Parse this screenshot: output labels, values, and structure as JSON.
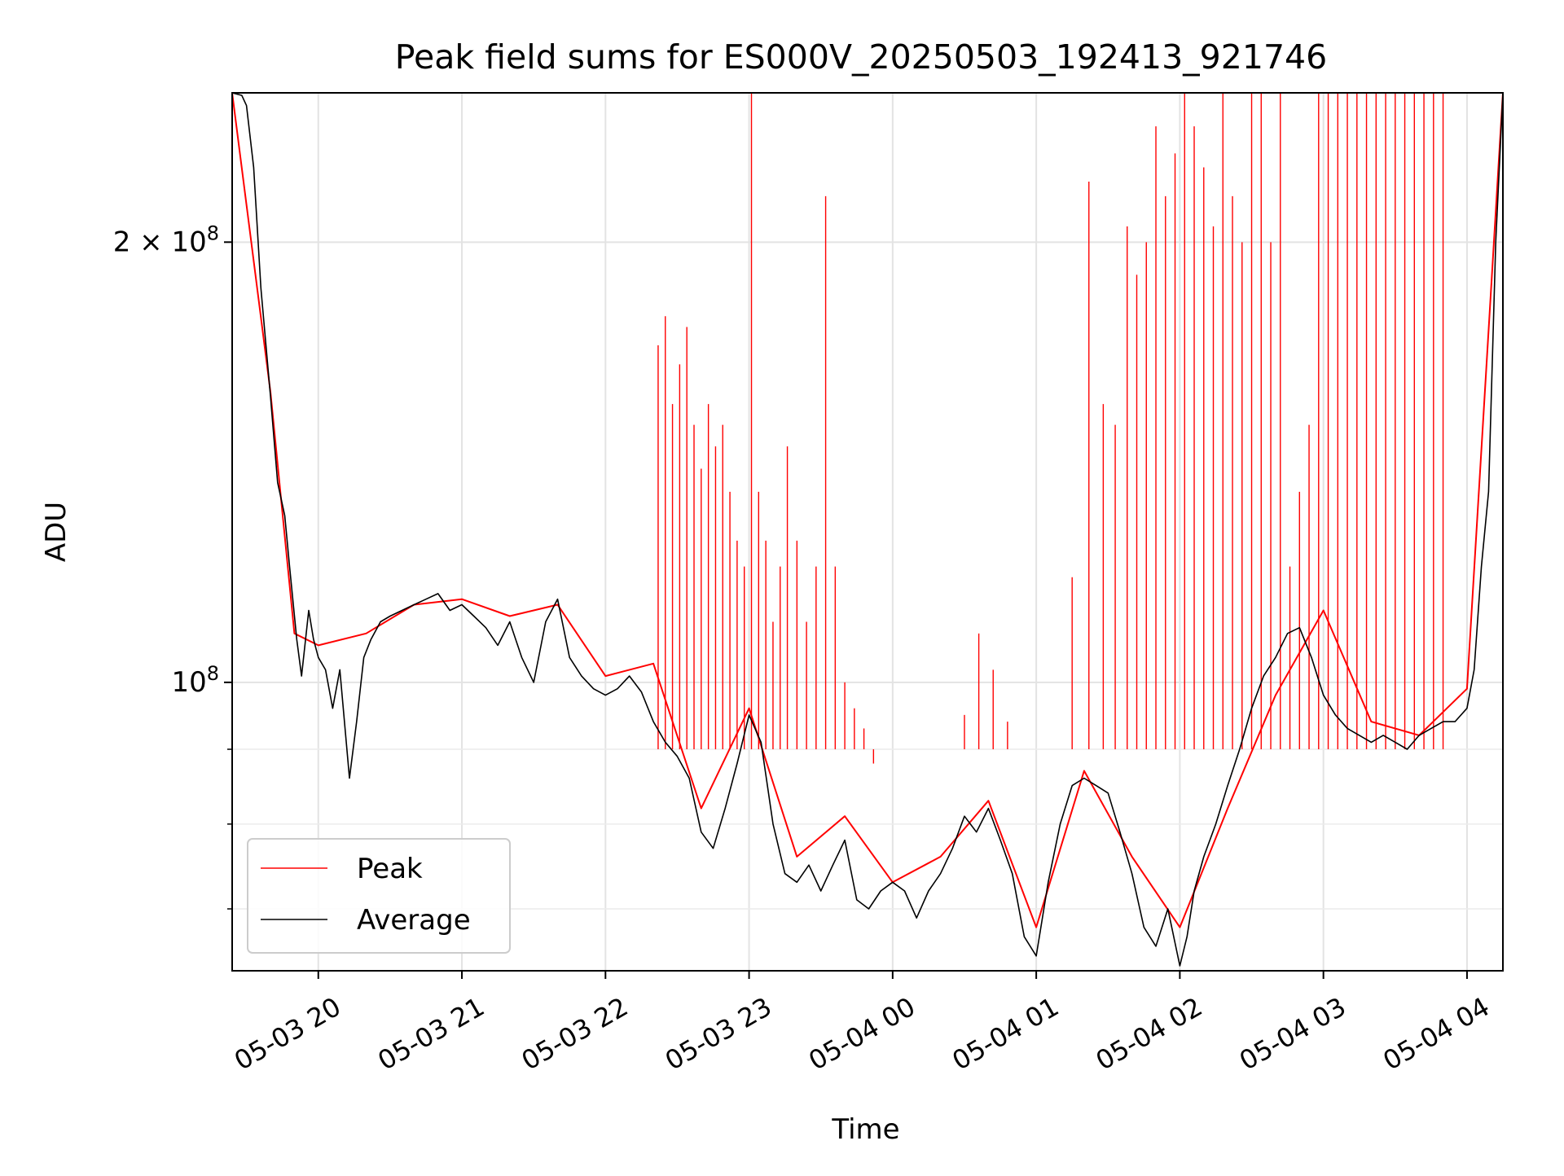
{
  "chart_data": {
    "type": "line",
    "title": "Peak field sums for ES000V_20250503_192413_921746",
    "xlabel": "Time",
    "ylabel": "ADU",
    "y_scale": "log",
    "grid": true,
    "legend_placement": "lower-left",
    "x_range": [
      "2025-05-03 19:24",
      "2025-05-04 04:15"
    ],
    "y_range": [
      63500000,
      253000000
    ],
    "x_ticks": [
      "05-03 20",
      "05-03 21",
      "05-03 22",
      "05-03 23",
      "05-04 00",
      "05-04 01",
      "05-04 02",
      "05-04 03",
      "05-04 04"
    ],
    "y_tick_labels": [
      {
        "value": 200000000,
        "mantissa": "2",
        "times": "×",
        "base": "10",
        "exp": "8"
      },
      {
        "value": 100000000,
        "mantissa": "",
        "times": "",
        "base": "10",
        "exp": "8"
      }
    ],
    "y_minor_ticks": [
      70000000,
      80000000,
      90000000
    ],
    "series": [
      {
        "name": "Average",
        "color": "#000000",
        "x": [
          "2025-05-03 19:24",
          "2025-05-03 19:28",
          "2025-05-03 19:30",
          "2025-05-03 19:33",
          "2025-05-03 19:36",
          "2025-05-03 19:40",
          "2025-05-03 19:43",
          "2025-05-03 19:46",
          "2025-05-03 19:48",
          "2025-05-03 19:51",
          "2025-05-03 19:53",
          "2025-05-03 19:56",
          "2025-05-03 19:58",
          "2025-05-03 20:00",
          "2025-05-03 20:03",
          "2025-05-03 20:06",
          "2025-05-03 20:09",
          "2025-05-03 20:13",
          "2025-05-03 20:16",
          "2025-05-03 20:19",
          "2025-05-03 20:22",
          "2025-05-03 20:26",
          "2025-05-03 20:30",
          "2025-05-03 20:35",
          "2025-05-03 20:40",
          "2025-05-03 20:45",
          "2025-05-03 20:50",
          "2025-05-03 20:55",
          "2025-05-03 21:00",
          "2025-05-03 21:05",
          "2025-05-03 21:10",
          "2025-05-03 21:15",
          "2025-05-03 21:20",
          "2025-05-03 21:25",
          "2025-05-03 21:30",
          "2025-05-03 21:35",
          "2025-05-03 21:40",
          "2025-05-03 21:45",
          "2025-05-03 21:50",
          "2025-05-03 21:55",
          "2025-05-03 22:00",
          "2025-05-03 22:05",
          "2025-05-03 22:10",
          "2025-05-03 22:15",
          "2025-05-03 22:20",
          "2025-05-03 22:25",
          "2025-05-03 22:30",
          "2025-05-03 22:35",
          "2025-05-03 22:40",
          "2025-05-03 22:45",
          "2025-05-03 22:50",
          "2025-05-03 22:55",
          "2025-05-03 23:00",
          "2025-05-03 23:05",
          "2025-05-03 23:10",
          "2025-05-03 23:15",
          "2025-05-03 23:20",
          "2025-05-03 23:25",
          "2025-05-03 23:30",
          "2025-05-03 23:35",
          "2025-05-03 23:40",
          "2025-05-03 23:45",
          "2025-05-03 23:50",
          "2025-05-03 23:55",
          "2025-05-04 00:00",
          "2025-05-04 00:05",
          "2025-05-04 00:10",
          "2025-05-04 00:15",
          "2025-05-04 00:20",
          "2025-05-04 00:25",
          "2025-05-04 00:30",
          "2025-05-04 00:35",
          "2025-05-04 00:40",
          "2025-05-04 00:45",
          "2025-05-04 00:50",
          "2025-05-04 00:55",
          "2025-05-04 01:00",
          "2025-05-04 01:05",
          "2025-05-04 01:10",
          "2025-05-04 01:15",
          "2025-05-04 01:20",
          "2025-05-04 01:25",
          "2025-05-04 01:30",
          "2025-05-04 01:35",
          "2025-05-04 01:40",
          "2025-05-04 01:45",
          "2025-05-04 01:50",
          "2025-05-04 01:55",
          "2025-05-04 02:00",
          "2025-05-04 02:03",
          "2025-05-04 02:06",
          "2025-05-04 02:10",
          "2025-05-04 02:15",
          "2025-05-04 02:20",
          "2025-05-04 02:25",
          "2025-05-04 02:30",
          "2025-05-04 02:35",
          "2025-05-04 02:40",
          "2025-05-04 02:45",
          "2025-05-04 02:50",
          "2025-05-04 02:55",
          "2025-05-04 03:00",
          "2025-05-04 03:05",
          "2025-05-04 03:10",
          "2025-05-04 03:15",
          "2025-05-04 03:20",
          "2025-05-04 03:25",
          "2025-05-04 03:30",
          "2025-05-04 03:35",
          "2025-05-04 03:40",
          "2025-05-04 03:45",
          "2025-05-04 03:50",
          "2025-05-04 03:55",
          "2025-05-04 04:00",
          "2025-05-04 04:03",
          "2025-05-04 04:06",
          "2025-05-04 04:09",
          "2025-05-04 04:12",
          "2025-05-04 04:15"
        ],
        "values": [
          253000000,
          252000000,
          248000000,
          225000000,
          186000000,
          157000000,
          137000000,
          130000000,
          120000000,
          107000000,
          101000000,
          112000000,
          107000000,
          104000000,
          102000000,
          96000000,
          102000000,
          86000000,
          94000000,
          104000000,
          107000000,
          110000000,
          111000000,
          112000000,
          113000000,
          114000000,
          115000000,
          112000000,
          113000000,
          111000000,
          109000000,
          106000000,
          110000000,
          104000000,
          100000000,
          110000000,
          114000000,
          104000000,
          101000000,
          99000000,
          98000000,
          99000000,
          101000000,
          98500000,
          94000000,
          91000000,
          89000000,
          86000000,
          79000000,
          77000000,
          82000000,
          88000000,
          95000000,
          91000000,
          80000000,
          74000000,
          73000000,
          75000000,
          72000000,
          75000000,
          78000000,
          71000000,
          70000000,
          72000000,
          73000000,
          72000000,
          69000000,
          72000000,
          74000000,
          77000000,
          81000000,
          79000000,
          82000000,
          78000000,
          74000000,
          67000000,
          65000000,
          73000000,
          80000000,
          85000000,
          86000000,
          85000000,
          84000000,
          79000000,
          74000000,
          68000000,
          66000000,
          70000000,
          64000000,
          67000000,
          72000000,
          76000000,
          80000000,
          85000000,
          90000000,
          96000000,
          101000000,
          104000000,
          108000000,
          109000000,
          104000000,
          98000000,
          95000000,
          93000000,
          92000000,
          91000000,
          92000000,
          91000000,
          90000000,
          92000000,
          93000000,
          94000000,
          94000000,
          96000000,
          102000000,
          120000000,
          135000000,
          200000000,
          253000000
        ]
      },
      {
        "name": "Peak",
        "color": "#ff0000",
        "base_x": [
          "2025-05-03 19:24",
          "2025-05-03 19:40",
          "2025-05-03 19:50",
          "2025-05-03 20:00",
          "2025-05-03 20:20",
          "2025-05-03 20:40",
          "2025-05-03 21:00",
          "2025-05-03 21:20",
          "2025-05-03 21:40",
          "2025-05-03 22:00",
          "2025-05-03 22:20",
          "2025-05-03 22:40",
          "2025-05-03 23:00",
          "2025-05-03 23:20",
          "2025-05-03 23:40",
          "2025-05-04 00:00",
          "2025-05-04 00:20",
          "2025-05-04 00:40",
          "2025-05-04 01:00",
          "2025-05-04 01:20",
          "2025-05-04 01:40",
          "2025-05-04 02:00",
          "2025-05-04 02:20",
          "2025-05-04 02:40",
          "2025-05-04 03:00",
          "2025-05-04 03:20",
          "2025-05-04 03:40",
          "2025-05-04 04:00",
          "2025-05-04 04:15"
        ],
        "base_values": [
          253000000,
          158000000,
          108000000,
          106000000,
          108000000,
          113000000,
          114000000,
          111000000,
          113000000,
          101000000,
          103000000,
          82000000,
          96000000,
          76000000,
          81000000,
          73000000,
          76000000,
          83000000,
          68000000,
          87000000,
          76000000,
          68000000,
          82000000,
          98000000,
          112000000,
          94000000,
          92000000,
          99000000,
          253000000
        ],
        "spikes_x": [
          "2025-05-03 22:22",
          "2025-05-03 22:25",
          "2025-05-03 22:28",
          "2025-05-03 22:31",
          "2025-05-03 22:34",
          "2025-05-03 22:37",
          "2025-05-03 22:40",
          "2025-05-03 22:43",
          "2025-05-03 22:46",
          "2025-05-03 22:49",
          "2025-05-03 22:52",
          "2025-05-03 22:55",
          "2025-05-03 22:58",
          "2025-05-03 23:01",
          "2025-05-03 23:04",
          "2025-05-03 23:07",
          "2025-05-03 23:10",
          "2025-05-03 23:13",
          "2025-05-03 23:16",
          "2025-05-03 23:20",
          "2025-05-03 23:24",
          "2025-05-03 23:28",
          "2025-05-03 23:32",
          "2025-05-03 23:36",
          "2025-05-03 23:40",
          "2025-05-03 23:44",
          "2025-05-03 23:48",
          "2025-05-03 23:52",
          "2025-05-04 00:30",
          "2025-05-04 00:36",
          "2025-05-04 00:42",
          "2025-05-04 00:48",
          "2025-05-04 01:15",
          "2025-05-04 01:22",
          "2025-05-04 01:28",
          "2025-05-04 01:33",
          "2025-05-04 01:38",
          "2025-05-04 01:42",
          "2025-05-04 01:46",
          "2025-05-04 01:50",
          "2025-05-04 01:54",
          "2025-05-04 01:58",
          "2025-05-04 02:02",
          "2025-05-04 02:06",
          "2025-05-04 02:10",
          "2025-05-04 02:14",
          "2025-05-04 02:18",
          "2025-05-04 02:22",
          "2025-05-04 02:26",
          "2025-05-04 02:30",
          "2025-05-04 02:34",
          "2025-05-04 02:38",
          "2025-05-04 02:42",
          "2025-05-04 02:46",
          "2025-05-04 02:50",
          "2025-05-04 02:54",
          "2025-05-04 02:58",
          "2025-05-04 03:02",
          "2025-05-04 03:06",
          "2025-05-04 03:10",
          "2025-05-04 03:14",
          "2025-05-04 03:18",
          "2025-05-04 03:22",
          "2025-05-04 03:26",
          "2025-05-04 03:30",
          "2025-05-04 03:34",
          "2025-05-04 03:38",
          "2025-05-04 03:42",
          "2025-05-04 03:46",
          "2025-05-04 03:50"
        ],
        "spikes_values": [
          170000000,
          178000000,
          155000000,
          165000000,
          175000000,
          150000000,
          140000000,
          155000000,
          145000000,
          150000000,
          135000000,
          125000000,
          120000000,
          253000000,
          135000000,
          125000000,
          110000000,
          120000000,
          145000000,
          125000000,
          110000000,
          120000000,
          215000000,
          120000000,
          100000000,
          96000000,
          93000000,
          88000000,
          95000000,
          108000000,
          102000000,
          94000000,
          118000000,
          220000000,
          155000000,
          150000000,
          205000000,
          190000000,
          200000000,
          240000000,
          215000000,
          230000000,
          253000000,
          240000000,
          225000000,
          205000000,
          253000000,
          215000000,
          200000000,
          253000000,
          253000000,
          200000000,
          253000000,
          120000000,
          135000000,
          150000000,
          253000000,
          253000000,
          253000000,
          253000000,
          253000000,
          253000000,
          253000000,
          253000000,
          253000000,
          253000000,
          253000000,
          253000000,
          253000000,
          253000000
        ]
      }
    ]
  }
}
